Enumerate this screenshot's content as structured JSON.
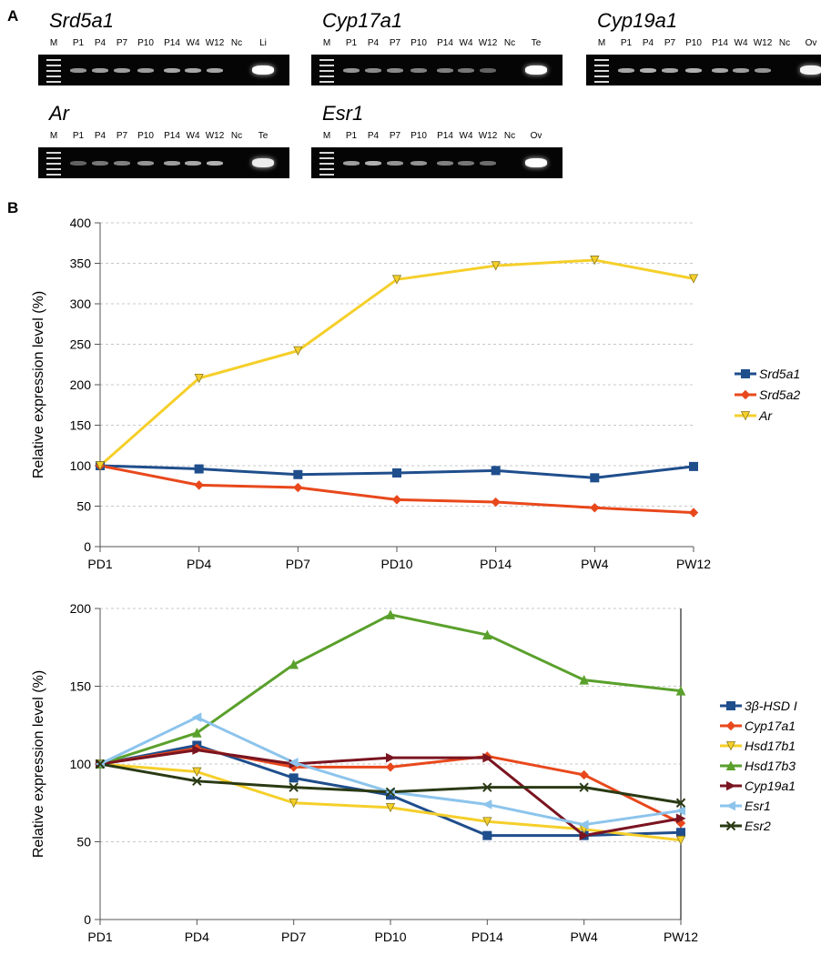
{
  "panel_labels": {
    "a": "A",
    "b": "B"
  },
  "gels": [
    {
      "title": "Srd5a1",
      "lanes": [
        "M",
        "P1",
        "P4",
        "P7",
        "P10",
        "P14",
        "W4",
        "W12",
        "Nc",
        "Li"
      ],
      "intensity": [
        0,
        0.45,
        0.5,
        0.5,
        0.5,
        0.55,
        0.55,
        0.55,
        0,
        1
      ]
    },
    {
      "title": "Cyp17a1",
      "lanes": [
        "M",
        "P1",
        "P4",
        "P7",
        "P10",
        "P14",
        "W4",
        "W12",
        "Nc",
        "Te"
      ],
      "intensity": [
        0,
        0.45,
        0.4,
        0.4,
        0.35,
        0.35,
        0.3,
        0.2,
        0,
        1
      ]
    },
    {
      "title": "Cyp19a1",
      "lanes": [
        "M",
        "P1",
        "P4",
        "P7",
        "P10",
        "P14",
        "W4",
        "W12",
        "Nc",
        "Ov"
      ],
      "intensity": [
        0,
        0.55,
        0.6,
        0.55,
        0.6,
        0.55,
        0.5,
        0.45,
        0,
        0.95
      ]
    },
    {
      "title": "Ar",
      "lanes": [
        "M",
        "P1",
        "P4",
        "P7",
        "P10",
        "P14",
        "W4",
        "W12",
        "Nc",
        "Te"
      ],
      "intensity": [
        0,
        0.2,
        0.3,
        0.35,
        0.45,
        0.5,
        0.55,
        0.6,
        0,
        0.9
      ]
    },
    {
      "title": "Esr1",
      "lanes": [
        "M",
        "P1",
        "P4",
        "P7",
        "P10",
        "P14",
        "W4",
        "W12",
        "Nc",
        "Ov"
      ],
      "intensity": [
        0,
        0.5,
        0.6,
        0.45,
        0.45,
        0.35,
        0.3,
        0.25,
        0,
        1
      ]
    }
  ],
  "chart_data": [
    {
      "type": "line",
      "categories": [
        "PD1",
        "PD4",
        "PD7",
        "PD10",
        "PD14",
        "PW4",
        "PW12"
      ],
      "ylabel": "Relative expression level (%)",
      "ylim": [
        0,
        400
      ],
      "yticks": [
        "0",
        "50",
        "100",
        "150",
        "200",
        "250",
        "300",
        "350",
        "400"
      ],
      "grid": true,
      "legend_position": "right",
      "series": [
        {
          "name": "Srd5a1",
          "color": "#1f4e8c",
          "marker": "square",
          "values": [
            100,
            96,
            89,
            91,
            94,
            85,
            99
          ]
        },
        {
          "name": "Srd5a2",
          "color": "#e8481c",
          "marker": "diamond",
          "values": [
            100,
            76,
            73,
            58,
            55,
            48,
            42
          ]
        },
        {
          "name": "Ar",
          "color": "#f5cf2a",
          "marker": "triangle-down",
          "values": [
            100,
            208,
            242,
            330,
            347,
            354,
            331
          ]
        }
      ]
    },
    {
      "type": "line",
      "categories": [
        "PD1",
        "PD4",
        "PD7",
        "PD10",
        "PD14",
        "PW4",
        "PW12"
      ],
      "ylabel": "Relative expression level (%)",
      "ylim": [
        0,
        200
      ],
      "yticks": [
        "0",
        "50",
        "100",
        "150",
        "200"
      ],
      "grid": true,
      "legend_position": "right",
      "series": [
        {
          "name": "3β-HSD I",
          "color": "#1f4e8c",
          "marker": "square",
          "values": [
            100,
            112,
            91,
            80,
            54,
            54,
            56
          ]
        },
        {
          "name": "Cyp17a1",
          "color": "#e8481c",
          "marker": "diamond",
          "values": [
            100,
            110,
            98,
            98,
            105,
            93,
            62
          ]
        },
        {
          "name": "Hsd17b1",
          "color": "#f5cf2a",
          "marker": "triangle-down",
          "values": [
            100,
            95,
            75,
            72,
            63,
            58,
            51
          ]
        },
        {
          "name": "Hsd17b3",
          "color": "#5aa02c",
          "marker": "triangle-up",
          "values": [
            100,
            120,
            164,
            196,
            183,
            154,
            147
          ]
        },
        {
          "name": "Cyp19a1",
          "color": "#7a1420",
          "marker": "triangle-right",
          "values": [
            100,
            109,
            100,
            104,
            104,
            54,
            65
          ]
        },
        {
          "name": "Esr1",
          "color": "#8cc4ec",
          "marker": "triangle-left",
          "values": [
            100,
            130,
            101,
            82,
            74,
            61,
            70
          ]
        },
        {
          "name": "Esr2",
          "color": "#2a3a14",
          "marker": "x",
          "values": [
            100,
            89,
            85,
            82,
            85,
            85,
            75
          ]
        }
      ]
    }
  ]
}
